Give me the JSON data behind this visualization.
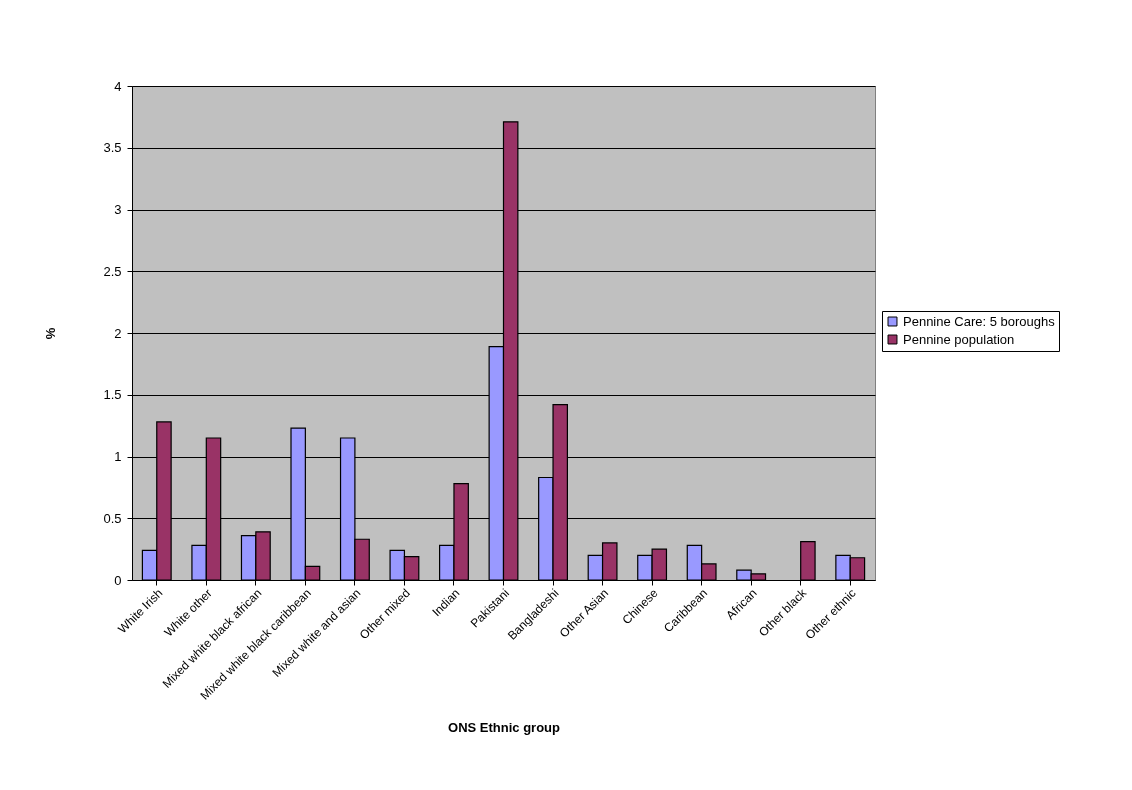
{
  "chart_data": {
    "type": "bar",
    "xlabel": "ONS Ethnic group",
    "ylabel": "%",
    "categories": [
      "White Irish",
      "White other",
      "Mixed white black african",
      "Mixed white black caribbean",
      "Mixed white and asian",
      "Other mixed",
      "Indian",
      "Pakistani",
      "Bangladeshi",
      "Other Asian",
      "Chinese",
      "Caribbean",
      "African",
      "Other black",
      "Other ethnic"
    ],
    "series": [
      {
        "name": "Pennine Care: 5 boroughs",
        "color": "#9999ff",
        "values": [
          0.24,
          0.28,
          0.36,
          1.23,
          1.15,
          0.24,
          0.28,
          1.89,
          0.83,
          0.2,
          0.2,
          0.28,
          0.08,
          null,
          0.2
        ]
      },
      {
        "name": "Pennine population",
        "color": "#993366",
        "values": [
          1.28,
          1.15,
          0.39,
          0.11,
          0.33,
          0.19,
          0.78,
          3.71,
          1.42,
          0.3,
          0.25,
          0.13,
          0.05,
          0.31,
          0.18
        ]
      }
    ],
    "ylim": [
      0,
      4
    ],
    "yticks": [
      0,
      0.5,
      1,
      1.5,
      2,
      2.5,
      3,
      3.5,
      4
    ],
    "grid": "y",
    "legend": "right"
  }
}
